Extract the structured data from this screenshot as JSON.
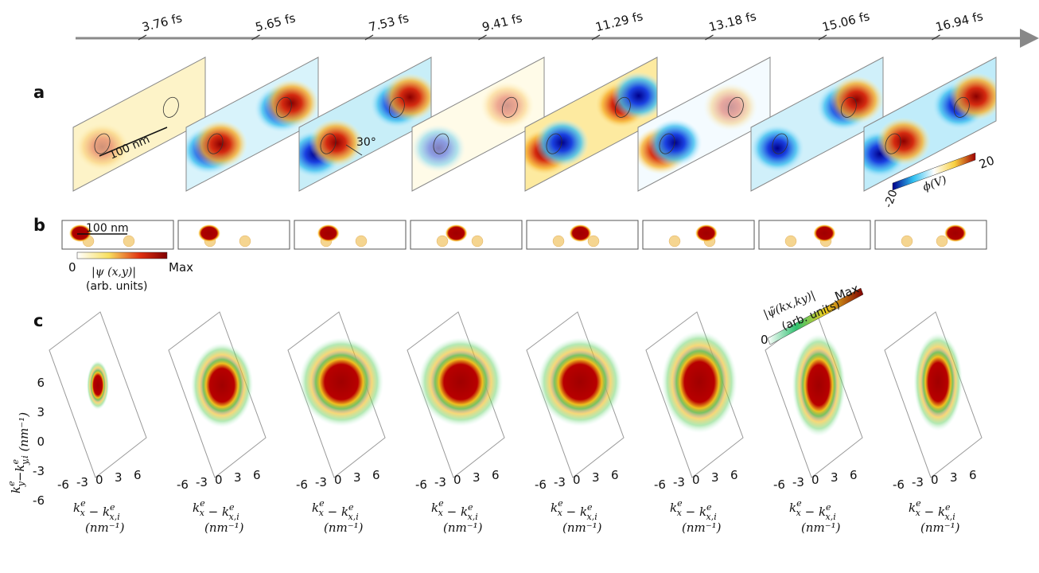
{
  "timeline": {
    "labels": [
      "3.76 fs",
      "5.65 fs",
      "7.53 fs",
      "9.41 fs",
      "11.29 fs",
      "13.18 fs",
      "15.06 fs",
      "16.94 fs"
    ]
  },
  "panel_a": {
    "label": "a",
    "scale_bar": "100 nm",
    "angle": "30°",
    "colorbar": {
      "min": "-20",
      "max": "20",
      "title": "ϕ(V)"
    }
  },
  "panel_b": {
    "label": "b",
    "scale_bar": "100 nm",
    "colorbar": {
      "min": "0",
      "max": "Max",
      "title": "|ψ (x,y)|",
      "units": "(arb. units)"
    }
  },
  "panel_c": {
    "label": "c",
    "y_label": [
      {
        "base": "k",
        "sup": "e",
        "sub": "y"
      },
      {
        "base": "−"
      },
      {
        "base": "k",
        "sup": "e",
        "sub": "y,i"
      },
      {
        "base": " (nm⁻¹)"
      }
    ],
    "y_ticks": [
      "6",
      "3",
      "0",
      "-3",
      "-6"
    ],
    "x_ticks": [
      "-6",
      "-3",
      "0",
      "3",
      "6"
    ],
    "x_label": [
      {
        "base": "k",
        "sup": "e",
        "sub": "x"
      },
      {
        "base": " − "
      },
      {
        "base": "k",
        "sup": "e",
        "sub": "x,i"
      }
    ],
    "x_units": "(nm⁻¹)",
    "colorbar": {
      "title": "|ψ̃(kx,ky)|",
      "units": "(arb. units)",
      "min": "0",
      "max": "Max"
    }
  }
}
